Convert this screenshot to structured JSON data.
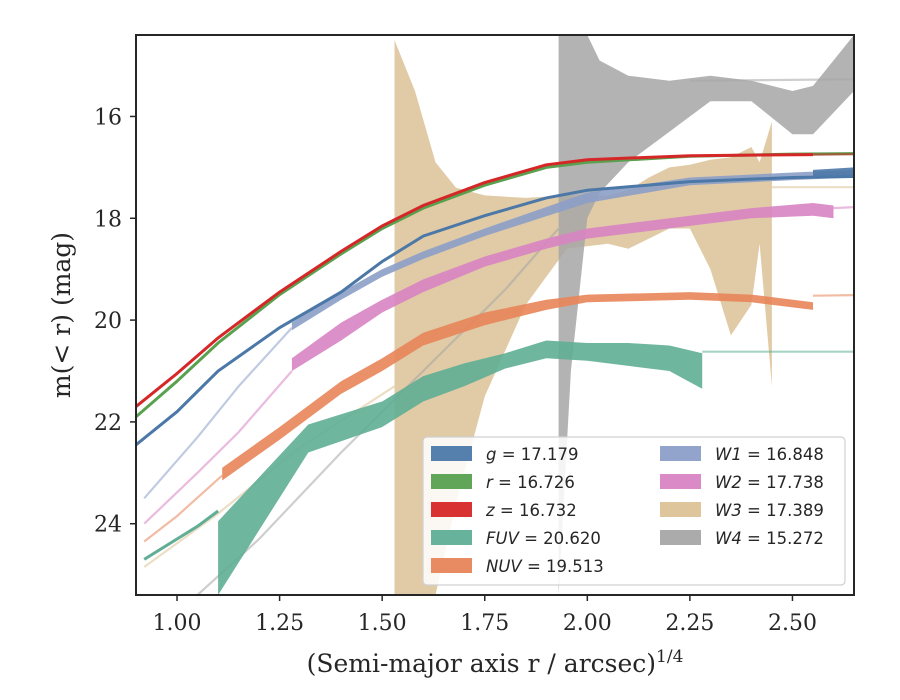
{
  "chart_data": {
    "type": "line",
    "xlabel": "(Semi-major axis r / arcsec)",
    "xlabel_sup": "1/4",
    "ylabel": "m(< r) (mag)",
    "xlim": [
      0.9,
      2.65
    ],
    "ylim": [
      25.4,
      14.4
    ],
    "y_inverted": true,
    "xticks": [
      "1.00",
      "1.25",
      "1.50",
      "1.75",
      "2.00",
      "2.25",
      "2.50"
    ],
    "xtick_values": [
      1.0,
      1.25,
      1.5,
      1.75,
      2.0,
      2.25,
      2.5
    ],
    "yticks": [
      "16",
      "18",
      "20",
      "22",
      "24"
    ],
    "ytick_values": [
      16,
      18,
      20,
      22,
      24
    ],
    "grid": false,
    "legend_position": "lower-right",
    "legend_columns": 2,
    "series": [
      {
        "key": "g",
        "name": "g",
        "value": "17.179",
        "color": "#4c78a8",
        "line": [
          [
            0.9,
            22.45
          ],
          [
            1.0,
            21.8
          ],
          [
            1.1,
            21.0
          ],
          [
            1.25,
            20.15
          ],
          [
            1.4,
            19.45
          ],
          [
            1.5,
            18.85
          ],
          [
            1.6,
            18.35
          ],
          [
            1.75,
            17.95
          ],
          [
            1.9,
            17.6
          ],
          [
            2.0,
            17.45
          ],
          [
            2.25,
            17.28
          ],
          [
            2.5,
            17.2
          ],
          [
            2.65,
            17.18
          ]
        ],
        "band": [
          [
            2.55,
            17.05,
            17.2
          ],
          [
            2.65,
            17.0,
            17.15
          ]
        ]
      },
      {
        "key": "r",
        "name": "r",
        "value": "16.726",
        "color": "#59a14f",
        "line": [
          [
            0.9,
            21.9
          ],
          [
            1.0,
            21.2
          ],
          [
            1.1,
            20.45
          ],
          [
            1.25,
            19.5
          ],
          [
            1.4,
            18.7
          ],
          [
            1.5,
            18.2
          ],
          [
            1.6,
            17.8
          ],
          [
            1.75,
            17.35
          ],
          [
            1.9,
            17.0
          ],
          [
            2.0,
            16.9
          ],
          [
            2.25,
            16.78
          ],
          [
            2.5,
            16.74
          ],
          [
            2.65,
            16.73
          ]
        ]
      },
      {
        "key": "z",
        "name": "z",
        "value": "16.732",
        "color": "#d62728",
        "line": [
          [
            0.9,
            21.7
          ],
          [
            1.0,
            21.05
          ],
          [
            1.1,
            20.35
          ],
          [
            1.25,
            19.45
          ],
          [
            1.4,
            18.65
          ],
          [
            1.5,
            18.15
          ],
          [
            1.6,
            17.75
          ],
          [
            1.75,
            17.3
          ],
          [
            1.9,
            16.95
          ],
          [
            2.0,
            16.85
          ],
          [
            2.25,
            16.77
          ],
          [
            2.55,
            16.75
          ]
        ],
        "line_light": [
          [
            2.55,
            16.75
          ],
          [
            2.65,
            16.74
          ]
        ]
      },
      {
        "key": "FUV",
        "name": "FUV",
        "value": "20.620",
        "color": "#5fae95",
        "line": [
          [
            0.92,
            24.7
          ],
          [
            1.05,
            24.05
          ],
          [
            1.1,
            23.75
          ]
        ],
        "band": [
          [
            1.1,
            23.95,
            25.4
          ],
          [
            1.32,
            22.05,
            22.6
          ],
          [
            1.5,
            21.6,
            22.1
          ],
          [
            1.6,
            21.1,
            21.6
          ],
          [
            1.7,
            20.85,
            21.3
          ],
          [
            1.8,
            20.65,
            20.95
          ],
          [
            1.9,
            20.4,
            20.75
          ],
          [
            2.0,
            20.45,
            20.8
          ],
          [
            2.1,
            20.45,
            20.9
          ],
          [
            2.2,
            20.5,
            21.0
          ],
          [
            2.28,
            20.65,
            21.35
          ]
        ],
        "line_light": [
          [
            2.28,
            20.62
          ],
          [
            2.65,
            20.62
          ]
        ]
      },
      {
        "key": "NUV",
        "name": "NUV",
        "value": "19.513",
        "color": "#e8855a",
        "line_light_start": [
          [
            0.92,
            24.35
          ],
          [
            1.0,
            23.85
          ],
          [
            1.11,
            23.05
          ]
        ],
        "band": [
          [
            1.11,
            22.9,
            23.15
          ],
          [
            1.25,
            22.1,
            22.35
          ],
          [
            1.4,
            21.2,
            21.45
          ],
          [
            1.5,
            20.75,
            21.0
          ],
          [
            1.6,
            20.25,
            20.5
          ],
          [
            1.75,
            19.85,
            20.1
          ],
          [
            1.9,
            19.6,
            19.8
          ],
          [
            2.0,
            19.5,
            19.65
          ],
          [
            2.25,
            19.45,
            19.6
          ],
          [
            2.4,
            19.5,
            19.65
          ],
          [
            2.55,
            19.65,
            19.8
          ]
        ],
        "line_light": [
          [
            2.55,
            19.52
          ],
          [
            2.65,
            19.51
          ]
        ]
      },
      {
        "key": "W1",
        "name": "W1",
        "value": "16.848",
        "color": "#8c9fc8",
        "line_light_start": [
          [
            0.92,
            23.5
          ],
          [
            1.05,
            22.3
          ],
          [
            1.15,
            21.3
          ],
          [
            1.28,
            20.15
          ]
        ],
        "band": [
          [
            1.28,
            20.05,
            20.2
          ],
          [
            1.4,
            19.45,
            19.6
          ],
          [
            1.5,
            19.0,
            19.15
          ],
          [
            1.6,
            18.65,
            18.8
          ],
          [
            1.75,
            18.2,
            18.35
          ],
          [
            2.0,
            17.5,
            17.7
          ],
          [
            2.25,
            17.2,
            17.35
          ],
          [
            2.5,
            17.1,
            17.25
          ],
          [
            2.65,
            17.05,
            17.2
          ]
        ]
      },
      {
        "key": "W2",
        "name": "W2",
        "value": "17.738",
        "color": "#d884c3",
        "line_light_start": [
          [
            0.92,
            24.0
          ],
          [
            1.05,
            23.0
          ],
          [
            1.15,
            22.2
          ],
          [
            1.28,
            21.0
          ]
        ],
        "band": [
          [
            1.28,
            20.75,
            21.0
          ],
          [
            1.4,
            20.05,
            20.4
          ],
          [
            1.5,
            19.6,
            19.85
          ],
          [
            1.6,
            19.2,
            19.45
          ],
          [
            1.75,
            18.75,
            18.95
          ],
          [
            1.9,
            18.4,
            18.6
          ],
          [
            2.0,
            18.2,
            18.4
          ],
          [
            2.25,
            17.95,
            18.15
          ],
          [
            2.4,
            17.8,
            18.0
          ],
          [
            2.55,
            17.7,
            17.95
          ],
          [
            2.6,
            17.75,
            18.0
          ]
        ],
        "line_light": [
          [
            2.6,
            17.8
          ],
          [
            2.65,
            17.78
          ]
        ]
      },
      {
        "key": "W3",
        "name": "W3",
        "value": "17.389",
        "color": "#dcc296",
        "line_light_start": [
          [
            0.92,
            24.85
          ],
          [
            1.1,
            23.8
          ],
          [
            1.3,
            22.5
          ],
          [
            1.53,
            21.3
          ]
        ],
        "band": [
          [
            1.53,
            14.5,
            25.4
          ],
          [
            1.58,
            15.5,
            25.4
          ],
          [
            1.63,
            16.9,
            25.4
          ],
          [
            1.68,
            17.4,
            23.6
          ],
          [
            1.75,
            17.55,
            21.5
          ],
          [
            1.85,
            17.6,
            19.7
          ],
          [
            1.95,
            17.55,
            18.6
          ],
          [
            2.05,
            17.55,
            18.5
          ],
          [
            2.1,
            17.45,
            18.6
          ],
          [
            2.15,
            17.2,
            18.4
          ],
          [
            2.2,
            17.0,
            18.2
          ],
          [
            2.25,
            16.95,
            18.2
          ],
          [
            2.3,
            16.85,
            19.0
          ],
          [
            2.35,
            16.8,
            20.3
          ],
          [
            2.4,
            16.6,
            19.7
          ],
          [
            2.42,
            16.9,
            18.5
          ],
          [
            2.45,
            16.1,
            21.3
          ]
        ],
        "line_light": [
          [
            2.45,
            17.39
          ],
          [
            2.65,
            17.39
          ]
        ]
      },
      {
        "key": "W4",
        "name": "W4",
        "value": "15.272",
        "color": "#a6a6a6",
        "line_light_start": [
          [
            1.05,
            25.4
          ],
          [
            1.2,
            24.3
          ],
          [
            1.4,
            22.6
          ],
          [
            1.6,
            21.0
          ],
          [
            1.8,
            19.4
          ],
          [
            1.93,
            18.2
          ]
        ],
        "band": [
          [
            1.93,
            14.4,
            25.4
          ],
          [
            1.96,
            14.4,
            21.0
          ],
          [
            2.0,
            14.4,
            18.0
          ],
          [
            2.03,
            14.9,
            17.5
          ],
          [
            2.1,
            15.2,
            16.9
          ],
          [
            2.2,
            15.3,
            16.3
          ],
          [
            2.3,
            15.2,
            15.7
          ],
          [
            2.4,
            15.3,
            15.7
          ],
          [
            2.5,
            15.5,
            16.35
          ],
          [
            2.55,
            15.4,
            16.35
          ],
          [
            2.65,
            14.4,
            15.5
          ]
        ],
        "line_light": [
          [
            2.25,
            15.3
          ],
          [
            2.65,
            15.27
          ]
        ]
      }
    ],
    "legend_order": [
      [
        "g",
        "r",
        "z",
        "FUV",
        "NUV"
      ],
      [
        "W1",
        "W2",
        "W3",
        "W4"
      ]
    ]
  }
}
